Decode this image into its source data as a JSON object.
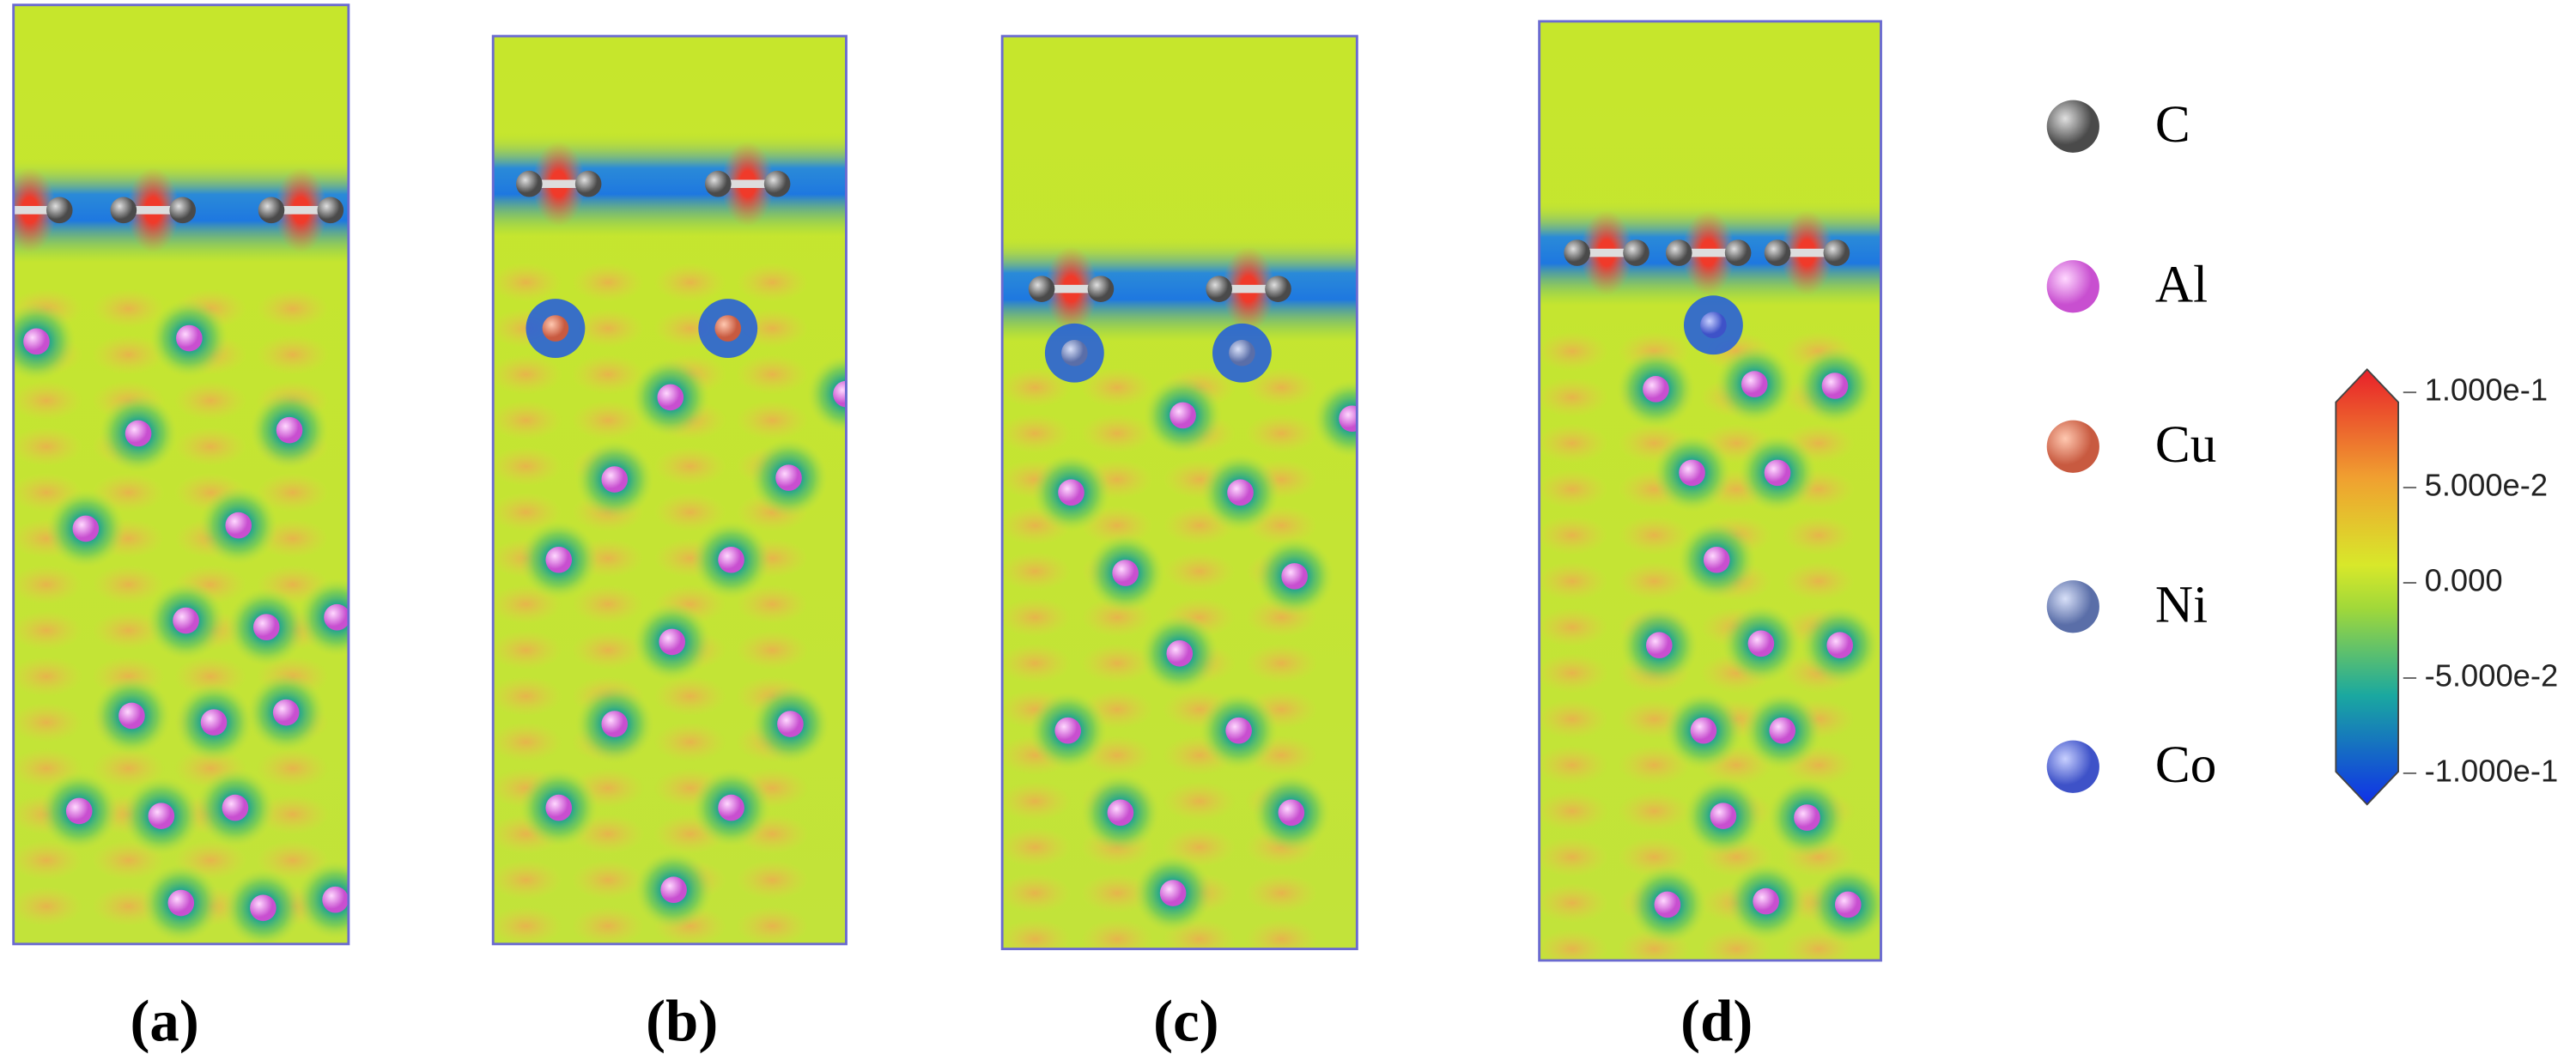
{
  "panels": [
    {
      "label": "(a)"
    },
    {
      "label": "(b)"
    },
    {
      "label": "(c)"
    },
    {
      "label": "(d)"
    }
  ],
  "legend": [
    {
      "label": "C"
    },
    {
      "label": "Al"
    },
    {
      "label": "Cu"
    },
    {
      "label": "Ni"
    },
    {
      "label": "Co"
    }
  ],
  "colorbar": {
    "ticks": [
      "1.000e-1",
      "5.000e-2",
      "0.000",
      "-5.000e-2",
      "-1.000e-1"
    ]
  }
}
